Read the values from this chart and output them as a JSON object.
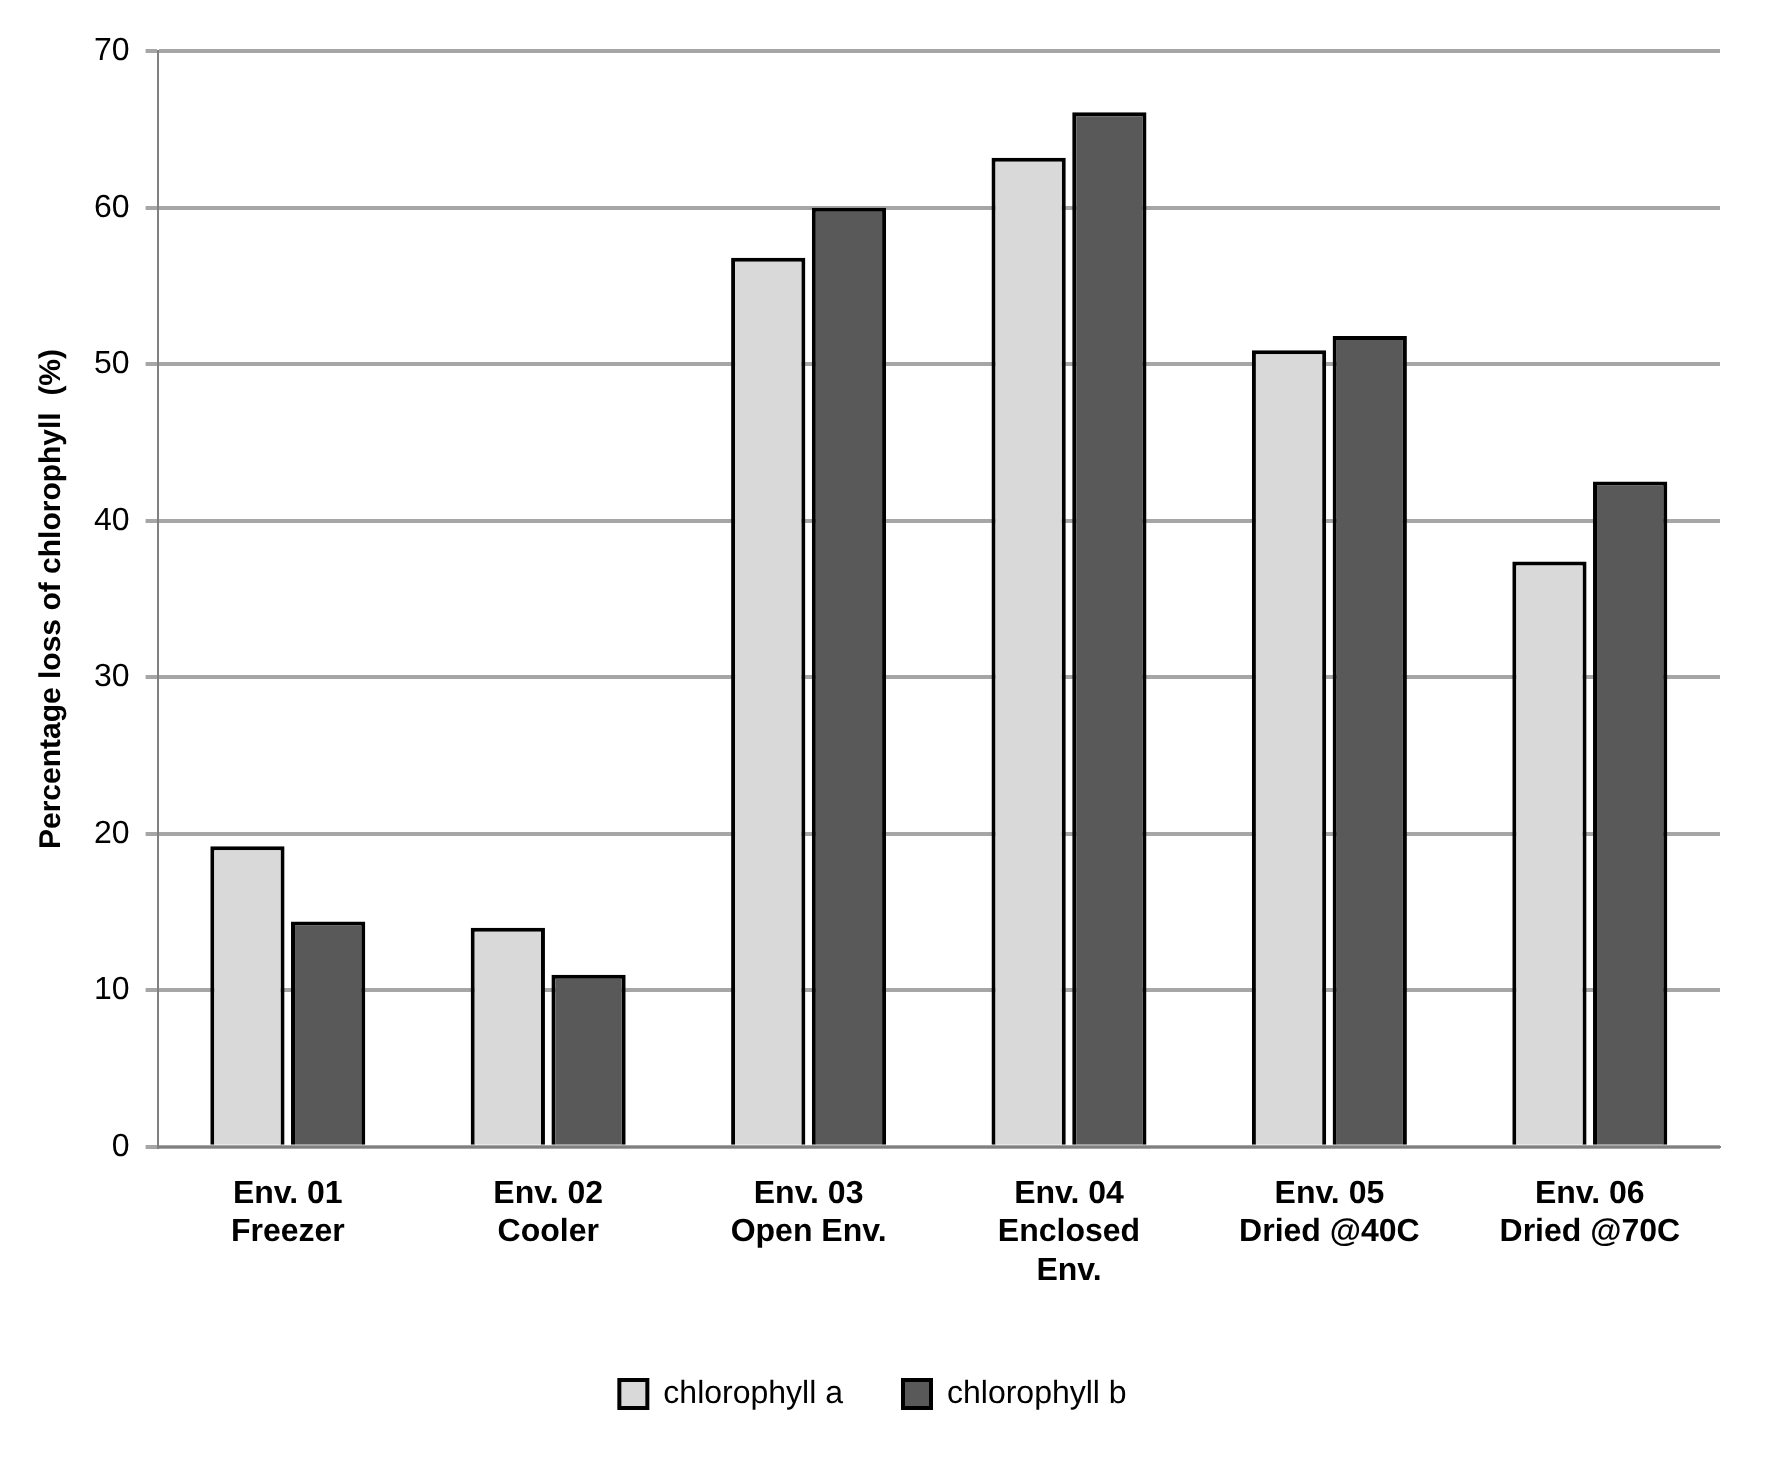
{
  "chart_data": {
    "type": "bar",
    "ylabel": "Percentage loss of chlorophyll  (%)",
    "categories": [
      "Env. 01 Freezer",
      "Env. 02 Cooler",
      "Env. 03 Open Env.",
      "Env. 04 Enclosed Env.",
      "Env. 05 Dried @40C",
      "Env. 06 Dried @70C"
    ],
    "series": [
      {
        "name": "chlorophyll a",
        "color": "#d9d9d9",
        "values": [
          19.2,
          14.0,
          56.8,
          63.2,
          50.9,
          37.4
        ]
      },
      {
        "name": "chlorophyll b",
        "color": "#595959",
        "values": [
          14.4,
          11.0,
          60.0,
          66.1,
          51.8,
          42.5
        ]
      }
    ],
    "ylim": [
      0,
      70
    ],
    "yticks": [
      0,
      10,
      20,
      30,
      40,
      50,
      60,
      70
    ],
    "grid": "y",
    "legend": "bottom"
  }
}
